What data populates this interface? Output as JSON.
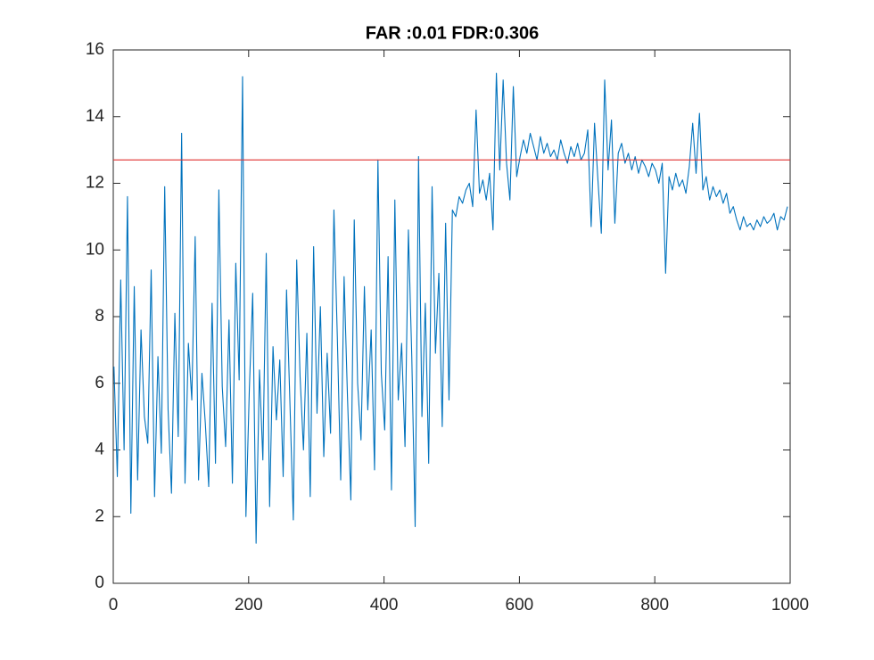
{
  "chart_data": {
    "type": "line",
    "title": "FAR :0.01  FDR:0.306",
    "xlim": [
      0,
      1000
    ],
    "xticks": [
      0,
      200,
      400,
      600,
      800,
      1000
    ],
    "ylim": [
      0,
      16
    ],
    "yticks": [
      0,
      2,
      4,
      6,
      8,
      10,
      12,
      14,
      16
    ],
    "grid": false,
    "series": [
      {
        "color": "#0072bd",
        "x": [
          1,
          6,
          11,
          16,
          21,
          26,
          31,
          36,
          41,
          46,
          51,
          56,
          61,
          66,
          71,
          76,
          81,
          86,
          91,
          96,
          101,
          106,
          111,
          116,
          121,
          126,
          131,
          136,
          141,
          146,
          151,
          156,
          161,
          166,
          171,
          176,
          181,
          186,
          191,
          196,
          201,
          206,
          211,
          216,
          221,
          226,
          231,
          236,
          241,
          246,
          251,
          256,
          261,
          266,
          271,
          276,
          281,
          286,
          291,
          296,
          301,
          306,
          311,
          316,
          321,
          326,
          331,
          336,
          341,
          346,
          351,
          356,
          361,
          366,
          371,
          376,
          381,
          386,
          391,
          396,
          401,
          406,
          411,
          416,
          421,
          426,
          431,
          436,
          441,
          446,
          451,
          456,
          461,
          466,
          471,
          476,
          481,
          486,
          491,
          496,
          501,
          506,
          511,
          516,
          521,
          526,
          531,
          536,
          541,
          546,
          551,
          556,
          561,
          566,
          571,
          576,
          581,
          586,
          591,
          596,
          601,
          606,
          611,
          616,
          621,
          626,
          631,
          636,
          641,
          646,
          651,
          656,
          661,
          666,
          671,
          676,
          681,
          686,
          691,
          696,
          701,
          706,
          711,
          716,
          721,
          726,
          731,
          736,
          741,
          746,
          751,
          756,
          761,
          766,
          771,
          776,
          781,
          786,
          791,
          796,
          801,
          806,
          811,
          816,
          821,
          826,
          831,
          836,
          841,
          846,
          851,
          856,
          861,
          866,
          871,
          876,
          881,
          886,
          891,
          896,
          901,
          906,
          911,
          916,
          921,
          926,
          931,
          936,
          941,
          946,
          951,
          956,
          961,
          966,
          971,
          976,
          981,
          986,
          991,
          996
        ],
        "values": [
          6.5,
          3.2,
          9.1,
          4.0,
          11.6,
          2.1,
          8.9,
          3.1,
          7.6,
          5.0,
          4.2,
          9.4,
          2.6,
          6.8,
          3.9,
          11.9,
          5.2,
          2.7,
          8.1,
          4.4,
          13.5,
          3.0,
          7.2,
          5.5,
          10.4,
          3.1,
          6.3,
          4.8,
          2.9,
          8.4,
          3.6,
          11.8,
          5.9,
          4.1,
          7.9,
          3.0,
          9.6,
          6.1,
          15.2,
          2.0,
          5.8,
          8.7,
          1.2,
          6.4,
          3.7,
          9.9,
          2.3,
          7.1,
          4.9,
          6.7,
          3.2,
          8.8,
          5.4,
          1.9,
          9.7,
          6.2,
          4.0,
          7.5,
          2.6,
          10.1,
          5.1,
          8.3,
          3.8,
          6.9,
          4.5,
          11.2,
          7.4,
          3.1,
          9.2,
          5.6,
          2.5,
          10.9,
          6.0,
          4.3,
          8.9,
          5.2,
          7.6,
          3.4,
          12.7,
          6.3,
          4.6,
          9.8,
          2.8,
          11.5,
          5.5,
          7.2,
          4.1,
          10.6,
          6.8,
          1.7,
          12.8,
          5.0,
          8.4,
          3.6,
          11.9,
          6.9,
          9.3,
          4.7,
          10.8,
          5.5,
          11.2,
          11.0,
          11.6,
          11.4,
          11.8,
          12.0,
          11.3,
          14.2,
          11.7,
          12.1,
          11.5,
          12.3,
          10.6,
          15.3,
          12.4,
          15.1,
          12.6,
          11.5,
          14.9,
          12.2,
          12.8,
          13.3,
          12.9,
          13.5,
          13.1,
          12.7,
          13.4,
          12.9,
          13.2,
          12.8,
          13.0,
          12.7,
          13.3,
          12.9,
          12.6,
          13.1,
          12.8,
          13.2,
          12.7,
          12.9,
          13.6,
          10.7,
          13.8,
          12.1,
          10.5,
          15.1,
          12.4,
          13.9,
          10.8,
          12.9,
          13.2,
          12.6,
          12.9,
          12.4,
          12.8,
          12.3,
          12.7,
          12.5,
          12.2,
          12.6,
          12.4,
          12.0,
          12.6,
          9.3,
          12.2,
          11.8,
          12.3,
          11.9,
          12.1,
          11.7,
          12.5,
          13.8,
          12.3,
          14.1,
          11.8,
          12.2,
          11.5,
          11.9,
          11.6,
          11.8,
          11.4,
          11.7,
          11.1,
          11.3,
          10.9,
          10.6,
          11.0,
          10.7,
          10.8,
          10.6,
          10.9,
          10.7,
          11.0,
          10.8,
          10.9,
          11.1,
          10.6,
          11.0,
          10.9,
          11.3
        ]
      },
      {
        "color": "#e0312f",
        "x": [
          0,
          1000
        ],
        "values": [
          12.7,
          12.7
        ]
      }
    ]
  }
}
